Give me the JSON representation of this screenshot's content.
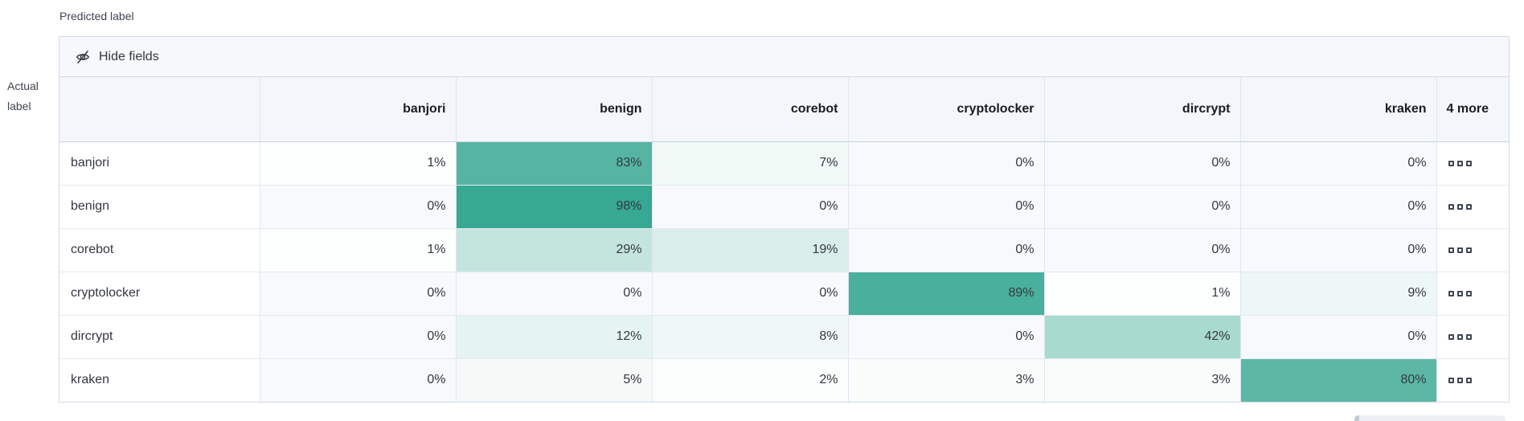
{
  "axes": {
    "predicted": "Predicted label",
    "actual_line1": "Actual",
    "actual_line2": "label"
  },
  "toolbar": {
    "hide_fields_label": "Hide fields",
    "icon": "eye-closed-icon"
  },
  "matrix": {
    "columns": [
      "banjori",
      "benign",
      "corebot",
      "cryptolocker",
      "dircrypt",
      "kraken"
    ],
    "more_column_label": "4 more",
    "value_suffix": "%",
    "more_cell_icon": "boxes-horizontal-icon",
    "rows": [
      {
        "label": "banjori",
        "values": [
          1,
          83,
          7,
          0,
          0,
          0
        ]
      },
      {
        "label": "benign",
        "values": [
          0,
          98,
          0,
          0,
          0,
          0
        ]
      },
      {
        "label": "corebot",
        "values": [
          1,
          29,
          19,
          0,
          0,
          0
        ]
      },
      {
        "label": "cryptolocker",
        "values": [
          0,
          0,
          0,
          89,
          1,
          9
        ]
      },
      {
        "label": "dircrypt",
        "values": [
          0,
          12,
          8,
          0,
          42,
          0
        ]
      },
      {
        "label": "kraken",
        "values": [
          0,
          5,
          2,
          3,
          3,
          80
        ]
      }
    ]
  },
  "colors": {
    "heat_base_rgb": "51,166,143",
    "zero_cell_bg": "#f7f9fc",
    "header_bg": "#f3f6fa",
    "toolbar_bg": "#f7f8fc",
    "outer_border": "#d3dae6",
    "inner_border": "#e0e6f0",
    "text": "#343741",
    "header_text": "#1a1c21",
    "axis_text": "#3f4450"
  },
  "scrollbar": {
    "present": true,
    "orientation": "horizontal"
  }
}
